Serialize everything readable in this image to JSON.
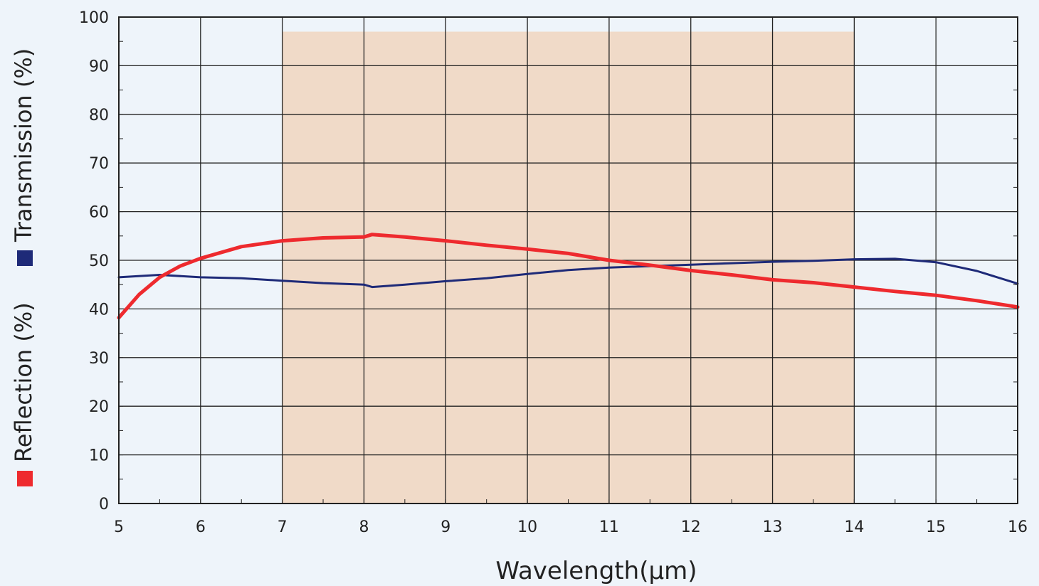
{
  "chart_data": {
    "type": "line",
    "xlabel": "Wavelength(μm)",
    "ylabel": "",
    "xlim": [
      5,
      16
    ],
    "ylim": [
      0,
      100
    ],
    "xticks": [
      5,
      6,
      7,
      8,
      9,
      10,
      11,
      12,
      13,
      14,
      15,
      16
    ],
    "yticks": [
      0,
      10,
      20,
      30,
      40,
      50,
      60,
      70,
      80,
      90,
      100
    ],
    "grid": true,
    "legend": {
      "placement": "left-vertical",
      "entries": [
        {
          "label": "Reflection (%)",
          "color": "#ee2a2e"
        },
        {
          "label": "Transmission (%)",
          "color": "#1e2a78"
        }
      ]
    },
    "highlight_band": {
      "x": [
        7,
        14
      ],
      "y": [
        0,
        97
      ],
      "color": "#f0dac8"
    },
    "series": [
      {
        "name": "Transmission (%)",
        "color": "#1e2a78",
        "x": [
          5,
          5.5,
          6,
          6.5,
          7,
          7.5,
          8,
          8.1,
          8.5,
          9,
          9.5,
          10,
          10.5,
          11,
          11.5,
          12,
          12.5,
          13,
          13.5,
          14,
          14.5,
          15,
          15.5,
          16
        ],
        "y": [
          46.5,
          47,
          46.5,
          46.3,
          45.8,
          45.3,
          45.0,
          44.5,
          45.0,
          45.7,
          46.3,
          47.2,
          48.0,
          48.5,
          48.8,
          49.1,
          49.4,
          49.7,
          49.9,
          50.2,
          50.3,
          49.6,
          47.8,
          45.2
        ]
      },
      {
        "name": "Reflection (%)",
        "color": "#ee2a2e",
        "x": [
          5,
          5.25,
          5.5,
          5.75,
          6,
          6.5,
          7,
          7.5,
          8,
          8.1,
          8.5,
          9,
          9.5,
          10,
          10.5,
          11,
          11.5,
          12,
          12.5,
          13,
          13.5,
          14,
          14.5,
          15,
          15.5,
          16
        ],
        "y": [
          38.2,
          43.0,
          46.5,
          48.8,
          50.4,
          52.8,
          54.0,
          54.6,
          54.8,
          55.3,
          54.8,
          54.0,
          53.1,
          52.3,
          51.4,
          50.0,
          49.0,
          47.9,
          47.0,
          46.0,
          45.4,
          44.5,
          43.6,
          42.8,
          41.7,
          40.4
        ]
      }
    ]
  }
}
